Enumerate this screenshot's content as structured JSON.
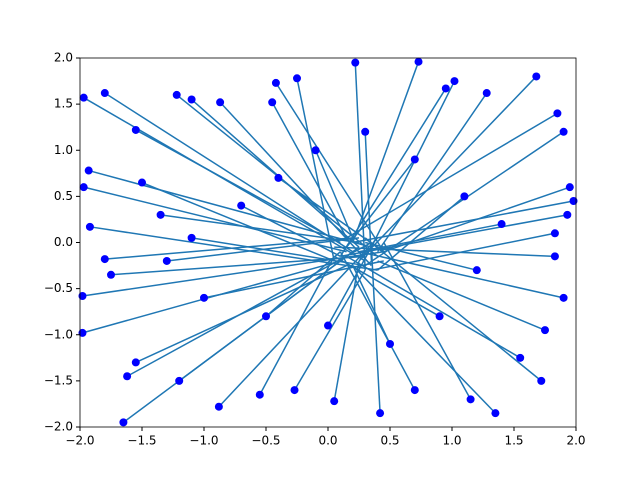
{
  "chart_data": {
    "type": "scatter",
    "line_color": "#1f77b4",
    "point_color": "#0000ff",
    "xlim": [
      -2,
      2
    ],
    "ylim": [
      -2,
      2
    ],
    "xticks": [
      {
        "value": -2,
        "label": "−2.0"
      },
      {
        "value": -1.5,
        "label": "−1.5"
      },
      {
        "value": -1,
        "label": "−1.0"
      },
      {
        "value": -0.5,
        "label": "−0.5"
      },
      {
        "value": 0,
        "label": "0.0"
      },
      {
        "value": 0.5,
        "label": "0.5"
      },
      {
        "value": 1,
        "label": "1.0"
      },
      {
        "value": 1.5,
        "label": "1.5"
      },
      {
        "value": 2,
        "label": "2.0"
      }
    ],
    "yticks": [
      {
        "value": -2,
        "label": "−2.0"
      },
      {
        "value": -1.5,
        "label": "−1.5"
      },
      {
        "value": -1,
        "label": "−1.0"
      },
      {
        "value": -0.5,
        "label": "−0.5"
      },
      {
        "value": 0,
        "label": "0.0"
      },
      {
        "value": 0.5,
        "label": "0.5"
      },
      {
        "value": 1,
        "label": "1.0"
      },
      {
        "value": 1.5,
        "label": "1.5"
      },
      {
        "value": 2,
        "label": "2.0"
      }
    ],
    "x": [
      -1.8,
      -1.97,
      -1.55,
      -1.22,
      -1.1,
      -0.87,
      -0.45,
      -0.42,
      -0.25,
      0.22,
      0.73,
      0.95,
      1.02,
      1.28,
      1.68,
      1.85,
      1.9,
      1.95,
      1.98,
      1.93,
      1.83,
      1.83,
      1.9,
      1.75,
      1.72,
      1.55,
      1.35,
      1.15,
      0.7,
      0.42,
      0.05,
      -0.27,
      -0.55,
      -0.88,
      -1.2,
      -1.55,
      -1.62,
      -1.65,
      -1.98,
      -1.98,
      -1.75,
      -1.8,
      -1.92,
      -1.97,
      -1.93,
      -1.5,
      -1.35,
      -1.1,
      -0.7,
      -0.4,
      -0.1,
      0.3,
      0.7,
      1.1,
      1.4,
      1.2,
      0.9,
      0.5,
      0.0,
      -0.5,
      -1.0,
      -1.3
    ],
    "y": [
      1.62,
      1.57,
      1.22,
      1.6,
      1.55,
      1.52,
      1.52,
      1.73,
      1.78,
      1.95,
      1.96,
      1.67,
      1.75,
      1.62,
      1.8,
      1.4,
      1.2,
      0.6,
      0.45,
      0.3,
      0.1,
      -0.15,
      -0.6,
      -0.95,
      -1.5,
      -1.25,
      -1.85,
      -1.7,
      -1.6,
      -1.85,
      -1.72,
      -1.6,
      -1.65,
      -1.78,
      -1.5,
      -1.3,
      -1.45,
      -1.95,
      -0.98,
      -0.58,
      -0.35,
      -0.18,
      0.17,
      0.6,
      0.78,
      0.65,
      0.3,
      0.05,
      0.4,
      0.7,
      1.0,
      1.2,
      0.9,
      0.5,
      0.2,
      -0.3,
      -0.8,
      -1.1,
      -0.9,
      -0.8,
      -0.6,
      -0.2
    ],
    "x_end": [
      0.2,
      0.3,
      0.1,
      0.4,
      0.25,
      0.35,
      0.15,
      0.45,
      0.05,
      0.3,
      0.2,
      0.1,
      0.35,
      0.4,
      0.25,
      0.15,
      0.3,
      0.45,
      0.2,
      0.1,
      0.35,
      0.05,
      0.25,
      0.4,
      0.3,
      0.15,
      0.2,
      0.45,
      0.1,
      0.35,
      0.25,
      0.3,
      0.05,
      0.4,
      0.2,
      0.15,
      0.35,
      0.25,
      0.1,
      0.45,
      0.3,
      0.2,
      0.4,
      0.15,
      0.35,
      0.05,
      0.25,
      0.3,
      0.1,
      0.45,
      0.2,
      0.35,
      0.15,
      0.4,
      0.25,
      0.3,
      0.05,
      0.2,
      0.35,
      0.1,
      0.45,
      0.25
    ],
    "y_end": [
      -0.1,
      -0.2,
      0.0,
      -0.15,
      -0.05,
      -0.25,
      0.05,
      -0.1,
      -0.2,
      -0.3,
      0.0,
      -0.15,
      -0.05,
      -0.1,
      -0.2,
      0.05,
      -0.25,
      -0.1,
      0.0,
      -0.15,
      -0.3,
      -0.05,
      -0.1,
      -0.2,
      0.05,
      -0.15,
      -0.25,
      0.0,
      -0.1,
      -0.05,
      -0.2,
      -0.3,
      -0.15,
      0.05,
      -0.1,
      -0.25,
      0.0,
      -0.05,
      -0.2,
      -0.1,
      -0.15,
      0.05,
      -0.3,
      -0.1,
      -0.05,
      -0.2,
      0.0,
      -0.25,
      -0.15,
      -0.1,
      0.05,
      -0.2,
      -0.05,
      -0.3,
      -0.1,
      0.0,
      -0.15,
      -0.25,
      -0.05,
      -0.1,
      -0.2,
      0.05
    ]
  }
}
